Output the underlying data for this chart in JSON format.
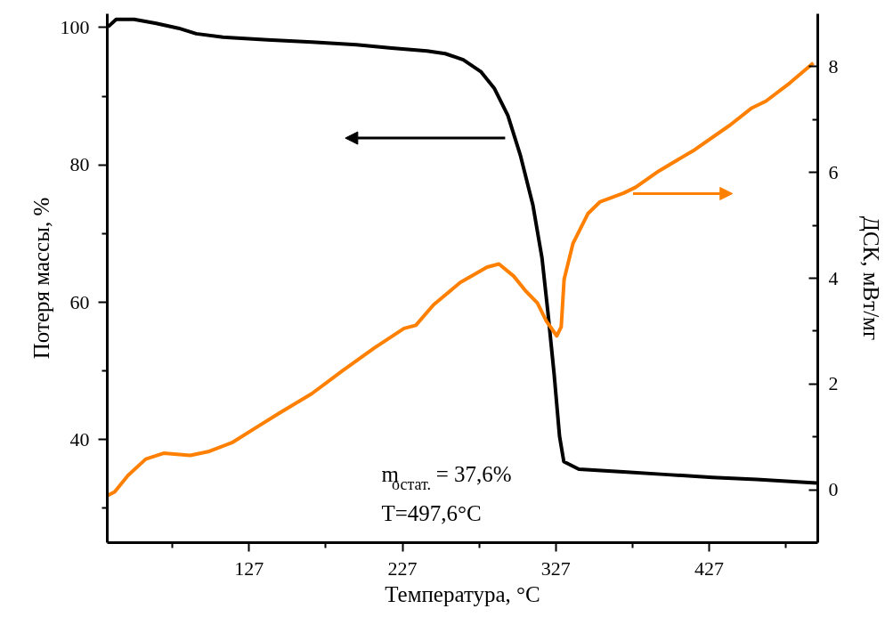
{
  "chart_data": {
    "type": "line",
    "xlabel": "Температура, °C",
    "ylabel": "Потеря массы, %",
    "y2label": "ДСК, мВт/мг",
    "xlim": [
      34.5,
      497.8
    ],
    "xticks": [
      {
        "value": 77,
        "label": null
      },
      127,
      {
        "value": 177,
        "label": null
      },
      227,
      {
        "value": 277,
        "label": null
      },
      327,
      {
        "value": 377,
        "label": null
      },
      427,
      {
        "value": 477,
        "label": null
      }
    ],
    "ylim": [
      25,
      102
    ],
    "yticks": [
      {
        "value": 30,
        "label": null
      },
      40,
      {
        "value": 50,
        "label": null
      },
      60,
      {
        "value": 70,
        "label": null
      },
      80,
      {
        "value": 90,
        "label": null
      },
      100
    ],
    "y2lim": [
      -1,
      9
    ],
    "y2ticks": [
      0,
      {
        "value": 1,
        "label": null
      },
      2,
      {
        "value": 3,
        "label": null
      },
      4,
      {
        "value": 5,
        "label": null
      },
      6,
      {
        "value": 7,
        "label": null
      },
      8
    ],
    "grid": false,
    "line_style": "solid",
    "annotations": [
      "m$_{остат.}$= 37,6%",
      "T=497,6°C"
    ],
    "series": [
      {
        "color": "#000000",
        "x": [
          35,
          40.3,
          52,
          66.4,
          80.9,
          92.5,
          110,
          139,
          168,
          197,
          220,
          243,
          254.9,
          266.6,
          278,
          287,
          295.7,
          304,
          312,
          318,
          321.8,
          325.9,
          329.4,
          332.2,
          342,
          371,
          400,
          429.2,
          458,
          487,
          497
        ],
        "values": [
          100.1,
          101.2,
          101.2,
          100.6,
          99.9,
          99.1,
          98.6,
          98.2,
          97.9,
          97.5,
          97.0,
          96.6,
          96.2,
          95.3,
          93.6,
          91.1,
          87.2,
          81.3,
          74.2,
          66.4,
          58.6,
          49.5,
          40.5,
          36.8,
          35.7,
          35.3,
          34.9,
          34.5,
          34.2,
          33.8,
          33.7
        ]
      },
      {
        "color": "#ff8000",
        "axis": "y2",
        "x": [
          34.5,
          39.3,
          48,
          59.6,
          71.2,
          88.6,
          100.3,
          115.8,
          131.2,
          146.7,
          168,
          187.3,
          208.6,
          228,
          235.7,
          247.3,
          264.7,
          282.2,
          289.9,
          299.5,
          307.3,
          315,
          320.8,
          327.6,
          330.5,
          332.4,
          338.2,
          347.9,
          355.6,
          371.2,
          379,
          394.3,
          417.6,
          440.8,
          454.3,
          464.1,
          479.5,
          494.9
        ],
        "values": [
          -0.11,
          -0.04,
          0.27,
          0.58,
          0.69,
          0.65,
          0.72,
          0.89,
          1.17,
          1.45,
          1.82,
          2.24,
          2.68,
          3.05,
          3.11,
          3.5,
          3.92,
          4.21,
          4.27,
          4.04,
          3.76,
          3.53,
          3.19,
          2.91,
          3.08,
          3.98,
          4.66,
          5.22,
          5.44,
          5.61,
          5.72,
          6.03,
          6.43,
          6.9,
          7.21,
          7.35,
          7.69,
          8.07
        ]
      }
    ]
  }
}
